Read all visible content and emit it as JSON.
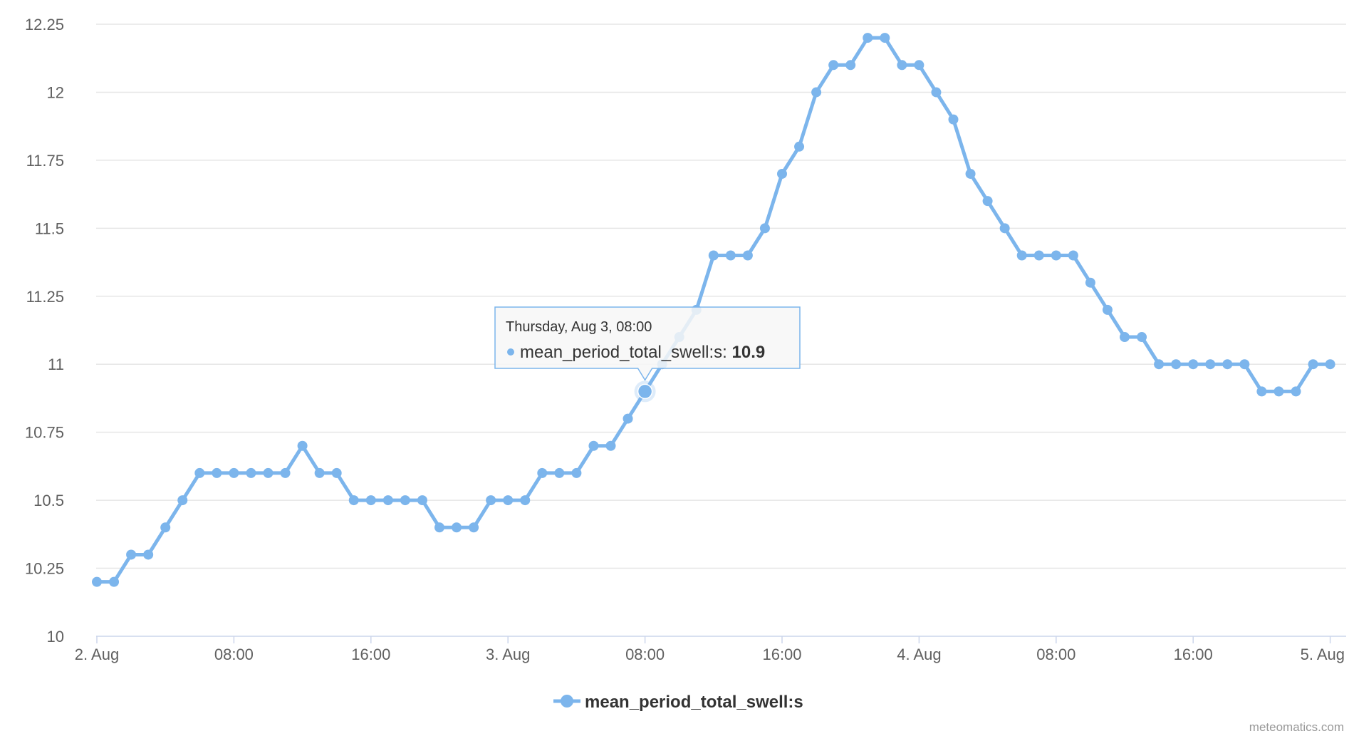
{
  "chart_data": {
    "type": "line",
    "x_start": "2023-08-02T00:00",
    "x_step_hours": 1,
    "x_ticks": [
      "2. Aug",
      "08:00",
      "16:00",
      "3. Aug",
      "08:00",
      "16:00",
      "4. Aug",
      "08:00",
      "16:00",
      "5. Aug"
    ],
    "y_ticks": [
      "10",
      "10.25",
      "10.5",
      "10.75",
      "11",
      "11.25",
      "11.5",
      "11.75",
      "12",
      "12.25"
    ],
    "ylim": [
      10,
      12.25
    ],
    "grid": "horizontal",
    "legend_position": "bottom-center",
    "series": [
      {
        "name": "mean_period_total_swell:s",
        "color": "#7cb5ec",
        "values": [
          10.2,
          10.2,
          10.3,
          10.3,
          10.4,
          10.5,
          10.6,
          10.6,
          10.6,
          10.6,
          10.6,
          10.6,
          10.7,
          10.6,
          10.6,
          10.5,
          10.5,
          10.5,
          10.5,
          10.5,
          10.4,
          10.4,
          10.4,
          10.5,
          10.5,
          10.5,
          10.6,
          10.6,
          10.6,
          10.7,
          10.7,
          10.8,
          10.9,
          11.0,
          11.1,
          11.2,
          11.4,
          11.4,
          11.4,
          11.5,
          11.7,
          11.8,
          12.0,
          12.1,
          12.1,
          12.2,
          12.2,
          12.1,
          12.1,
          12.0,
          11.9,
          11.7,
          11.6,
          11.5,
          11.4,
          11.4,
          11.4,
          11.4,
          11.3,
          11.2,
          11.1,
          11.1,
          11.0,
          11.0,
          11.0,
          11.0,
          11.0,
          11.0,
          10.9,
          10.9,
          10.9,
          11.0,
          11.0
        ]
      }
    ],
    "tooltip": {
      "index": 32,
      "header": "Thursday, Aug 3, 08:00",
      "series_label": "mean_period_total_swell:s: ",
      "value": "10.9"
    }
  },
  "legend": {
    "label": "mean_period_total_swell:s"
  },
  "credits": {
    "text": "meteomatics.com"
  }
}
